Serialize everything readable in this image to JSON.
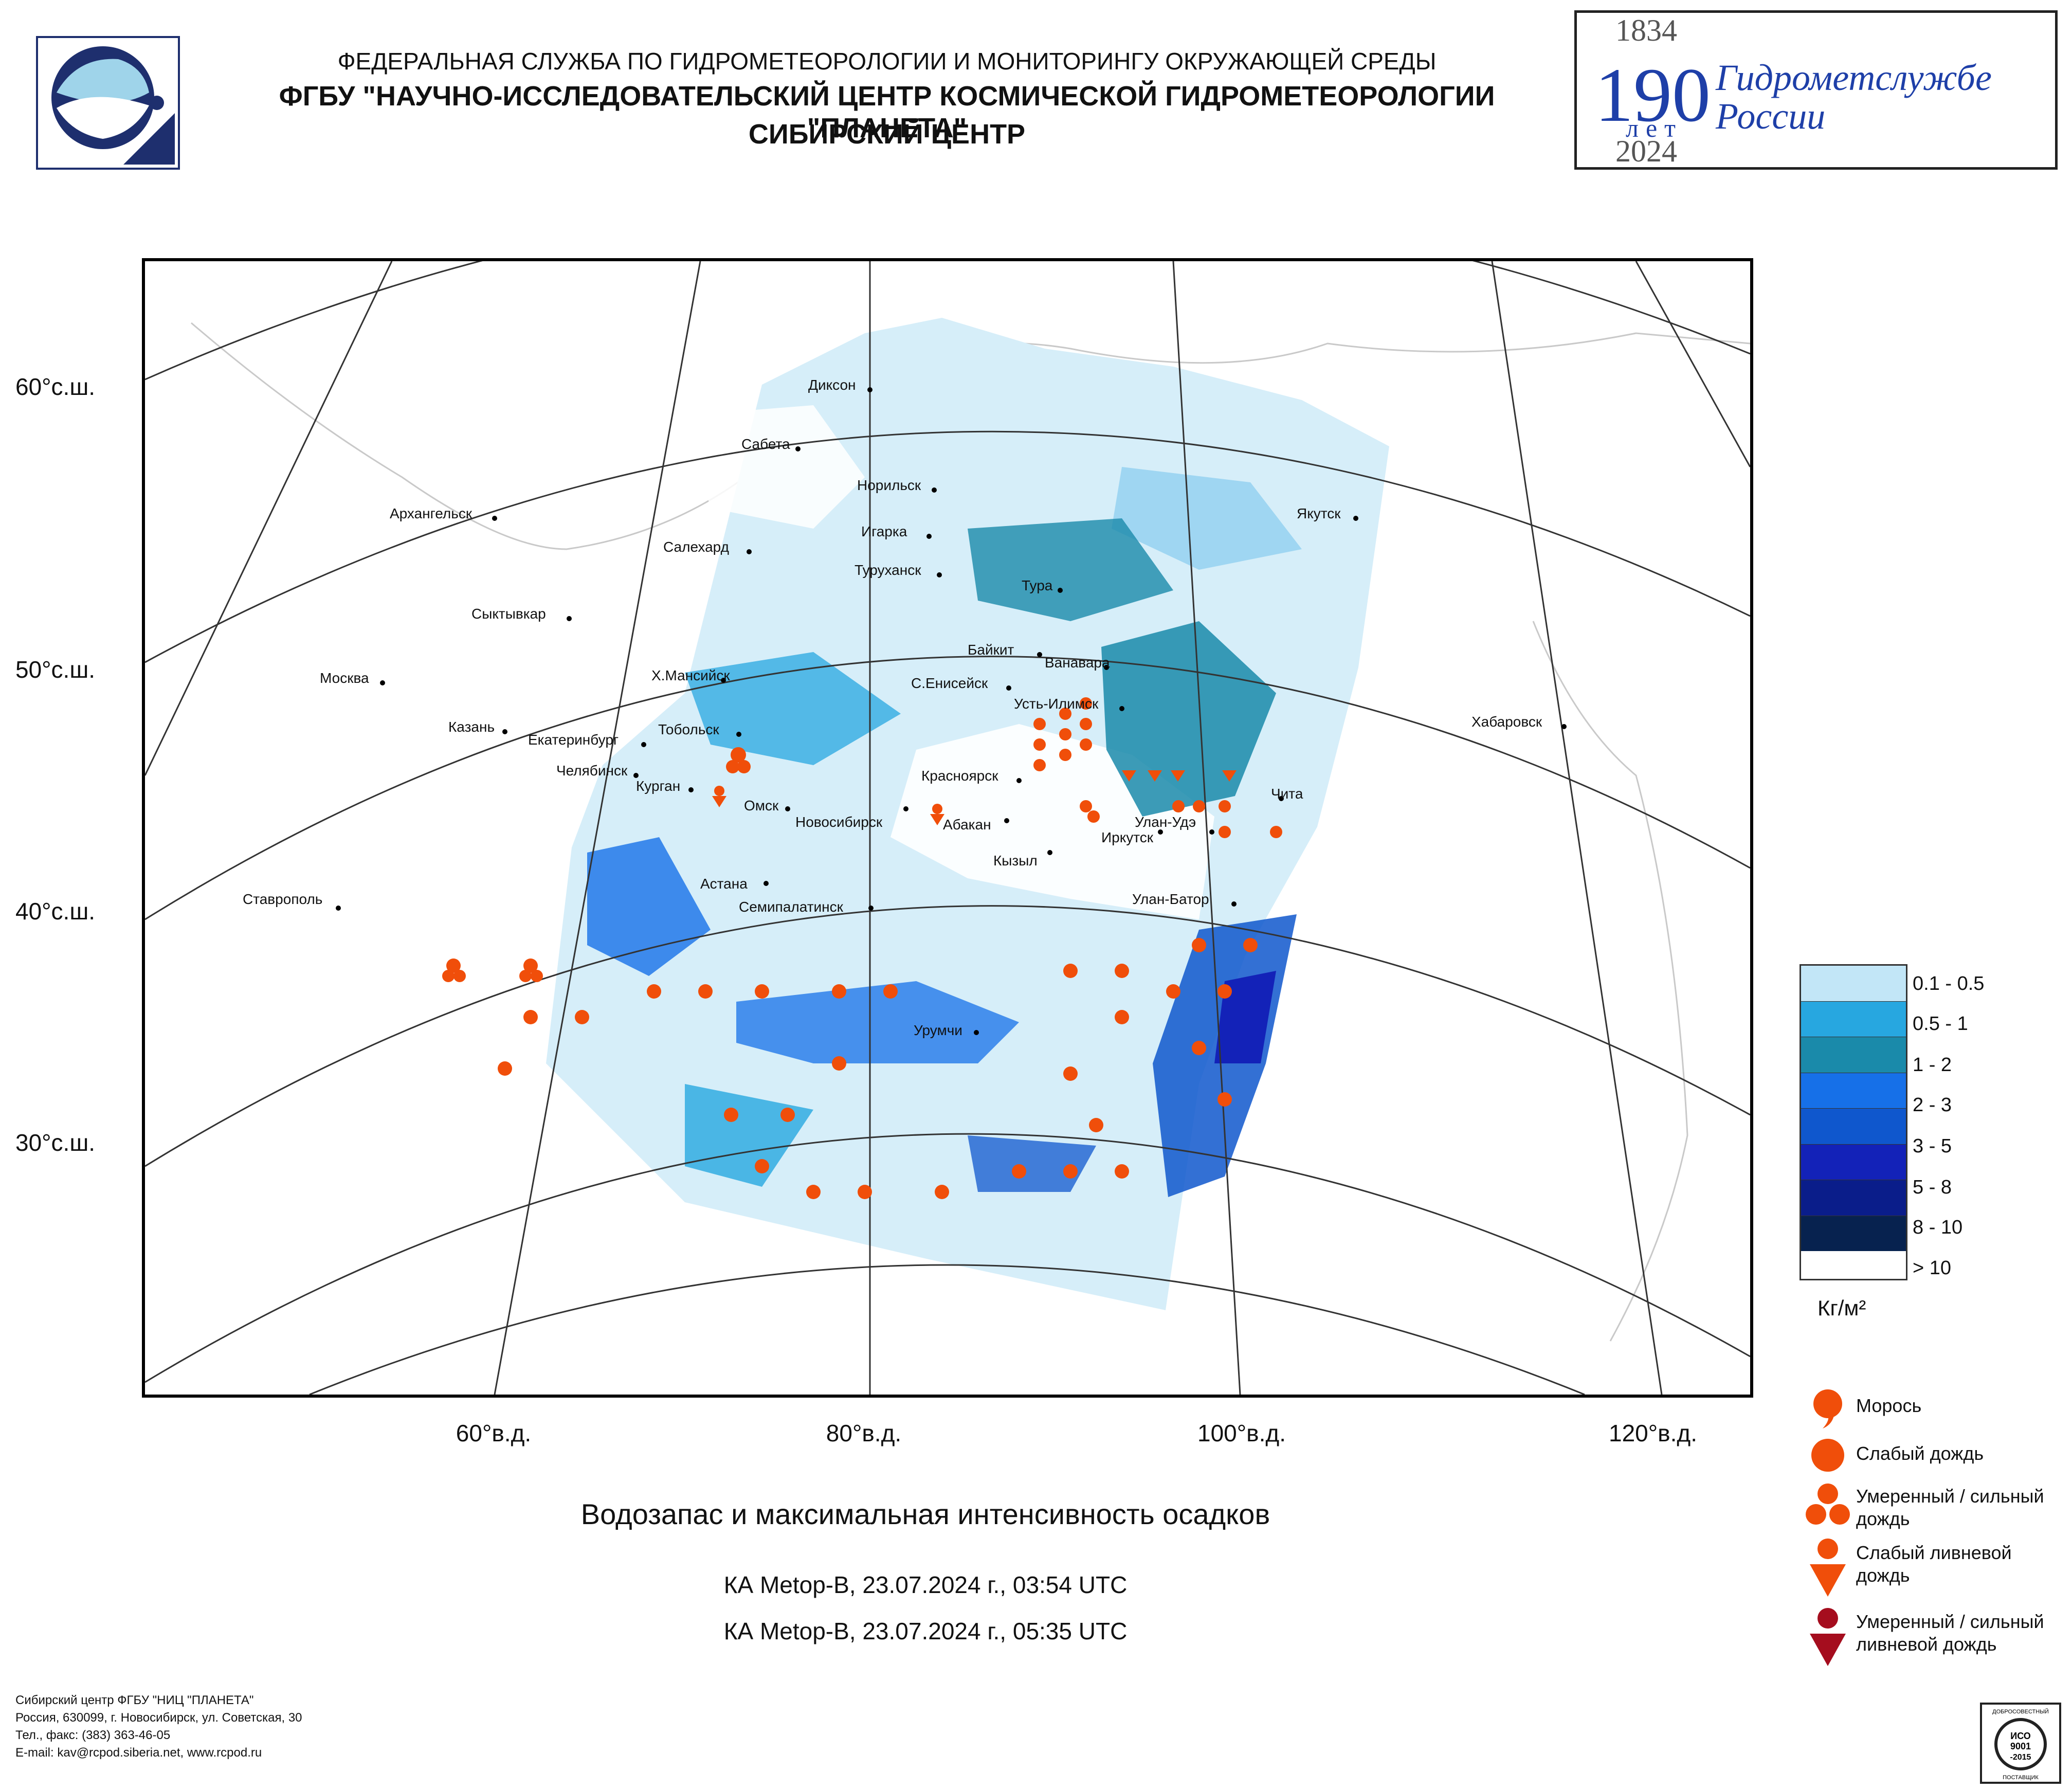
{
  "header": {
    "line1": "ФЕДЕРАЛЬНАЯ СЛУЖБА ПО ГИДРОМЕТЕОРОЛОГИИ И МОНИТОРИНГУ ОКРУЖАЮЩЕЙ СРЕДЫ",
    "line2": "ФГБУ \"НАУЧНО-ИССЛЕДОВАТЕЛЬСКИЙ ЦЕНТР КОСМИЧЕСКОЙ ГИДРОМЕТЕОРОЛОГИИ \"ПЛАНЕТА\"",
    "line3": "СИБИРСКИЙ ЦЕНТР"
  },
  "anniversary": {
    "year_start": "1834",
    "number": "190",
    "unit": "лет",
    "year_end": "2024",
    "name_line1": "Гидрометслужбе",
    "name_line2": "России"
  },
  "map": {
    "lat_labels": [
      "60°с.ш.",
      "50°с.ш.",
      "40°с.ш.",
      "30°с.ш."
    ],
    "lon_labels": [
      "60°в.д.",
      "80°в.д.",
      "100°в.д.",
      "120°в.д."
    ],
    "cities": [
      "Диксон",
      "Сабета",
      "Норильск",
      "Игарка",
      "Туруханск",
      "Салехард",
      "Архангельск",
      "Якутск",
      "Тура",
      "Сыктывкар",
      "Байкит",
      "Ванавара",
      "Х.Мансийск",
      "С.Енисейск",
      "Москва",
      "Усть-Илимск",
      "Хабаровск",
      "Казань",
      "Тобольск",
      "Екатеринбург",
      "Челябинск",
      "Курган",
      "Красноярск",
      "Чита",
      "Омск",
      "Новосибирск",
      "Абакан",
      "Улан-Удэ",
      "Иркутск",
      "Кызыл",
      "Астана",
      "Ставрополь",
      "Семипалатинск",
      "Улан-Батор",
      "Урумчи"
    ]
  },
  "legend": {
    "classes": [
      "0.1 - 0.5",
      "0.5 - 1",
      "1 - 2",
      "2 - 3",
      "3 - 5",
      "5 - 8",
      "8 - 10",
      "> 10"
    ],
    "colors": [
      "#c2e6f7",
      "#27a7e0",
      "#1a8aaa",
      "#1670e8",
      "#0f57cd",
      "#1322b8",
      "#0a1d8a",
      "#07224f"
    ],
    "unit": "Кг/м²"
  },
  "precip_legend": [
    {
      "label": "Морось",
      "symbol": "drizzle-icon"
    },
    {
      "label": "Слабый дождь",
      "symbol": "light-rain-icon"
    },
    {
      "label": "Умеренный / сильный дождь",
      "symbol": "moderate-rain-icon"
    },
    {
      "label": "Слабый ливневой дождь",
      "symbol": "light-shower-icon"
    },
    {
      "label": "Умеренный / сильный ливневой дождь",
      "symbol": "heavy-shower-icon"
    }
  ],
  "precip_colors": {
    "rain": "#f04e0a",
    "heavy_shower": "#a50d1e"
  },
  "title": "Водозапас и максимальная интенсивность осадков",
  "passes": [
    "КА Metop-B, 23.07.2024 г., 03:54 UTC",
    "КА Metop-B, 23.07.2024 г., 05:35 UTC"
  ],
  "footer": [
    "Сибирский центр ФГБУ \"НИЦ \"ПЛАНЕТА\"",
    "Россия, 630099, г. Новосибирск, ул. Советская, 30",
    "Тел., факс: (383) 363-46-05",
    "E-mail: kav@rcpod.siberia.net, www.rcpod.ru"
  ],
  "iso_badge": {
    "top": "ДОБРОСОВЕСТНЫЙ",
    "line1": "ИСО",
    "line2": "9001",
    "line3": "-2015",
    "bottom": "ПОСТАВЩИК"
  }
}
